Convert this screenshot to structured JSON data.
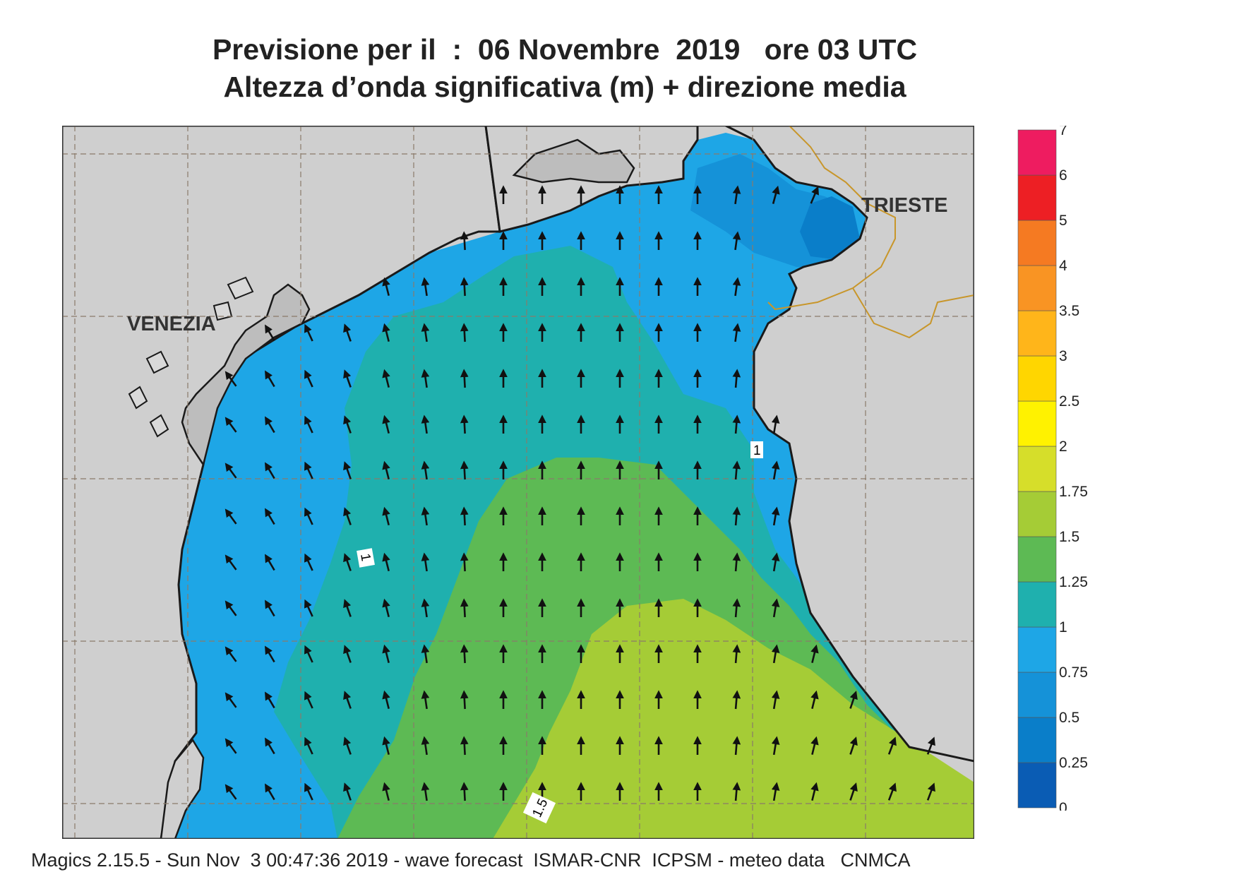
{
  "title": {
    "line1": "Previsione per il  :  06 Novembre  2019   ore 03 UTC",
    "line2": "Altezza d’onda significativa (m) + direzione media"
  },
  "cities": [
    {
      "name": "VENEZIA"
    },
    {
      "name": "TRIESTE"
    }
  ],
  "contour_labels": [
    "1",
    "1",
    "1.5"
  ],
  "legend": {
    "levels": [
      "0",
      "0.25",
      "0.5",
      "0.75",
      "1",
      "1.25",
      "1.5",
      "1.75",
      "2",
      "2.5",
      "3",
      "3.5",
      "4",
      "5",
      "6",
      "7"
    ],
    "colors": [
      "#0a5cb4",
      "#0a7ec9",
      "#1592d8",
      "#1ea6e6",
      "#1fb0ae",
      "#5dba54",
      "#a5cc36",
      "#d6de2a",
      "#fff200",
      "#ffd600",
      "#ffb51a",
      "#f99423",
      "#f57a22",
      "#ed1f24",
      "#ee1c60"
    ]
  },
  "map": {
    "land_color": "#cfcfcf",
    "lagoon_color": "#bdbdbd",
    "border_color": "#c8962a",
    "wave_arrow_color": "#111111"
  },
  "footer": "Magics 2.15.5 - Sun Nov  3 00:47:36 2019 - wave forecast  ISMAR-CNR  ICPSM - meteo data   CNMCA"
}
